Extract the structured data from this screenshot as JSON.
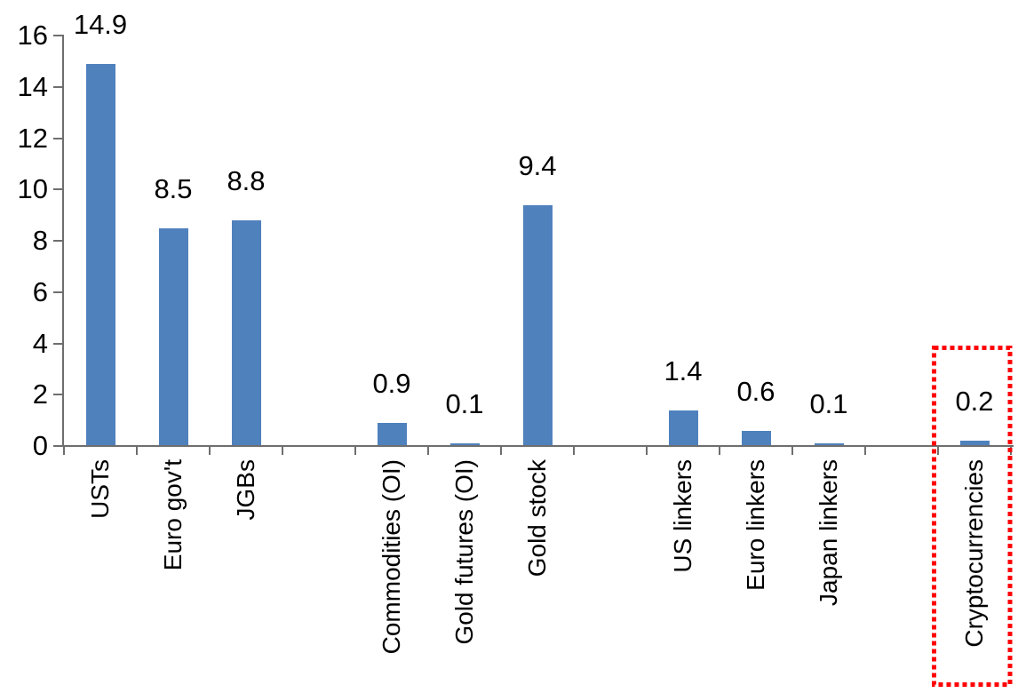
{
  "chart_data": {
    "type": "bar",
    "title": "",
    "xlabel": "",
    "ylabel": "",
    "categories": [
      "USTs",
      "Euro gov't",
      "JGBs",
      "Commodities (OI)",
      "Gold futures (OI)",
      "Gold stock",
      "US linkers",
      "Euro linkers",
      "Japan linkers",
      "Cryptocurrencies"
    ],
    "values": [
      14.9,
      8.5,
      8.8,
      0.9,
      0.1,
      9.4,
      1.4,
      0.6,
      0.1,
      0.2
    ],
    "data_labels": [
      "14.9",
      "8.5",
      "8.8",
      "0.9",
      "0.1",
      "9.4",
      "1.4",
      "0.6",
      "0.1",
      "0.2"
    ],
    "slot_index": [
      0,
      1,
      2,
      4,
      5,
      6,
      8,
      9,
      10,
      12
    ],
    "num_slots": 13,
    "y_axis": {
      "min": 0,
      "max": 16,
      "step": 2,
      "tick_labels": [
        "0",
        "2",
        "4",
        "6",
        "8",
        "10",
        "12",
        "14",
        "16"
      ]
    },
    "grid": "off",
    "legend": null,
    "colors": {
      "bar": "#4F81BD",
      "axis": "#6e6e6e",
      "text": "#000000",
      "highlight": "#FF0000"
    },
    "highlight": {
      "category": "Cryptocurrencies",
      "slot_index": 12,
      "style": "dotted-box"
    }
  }
}
